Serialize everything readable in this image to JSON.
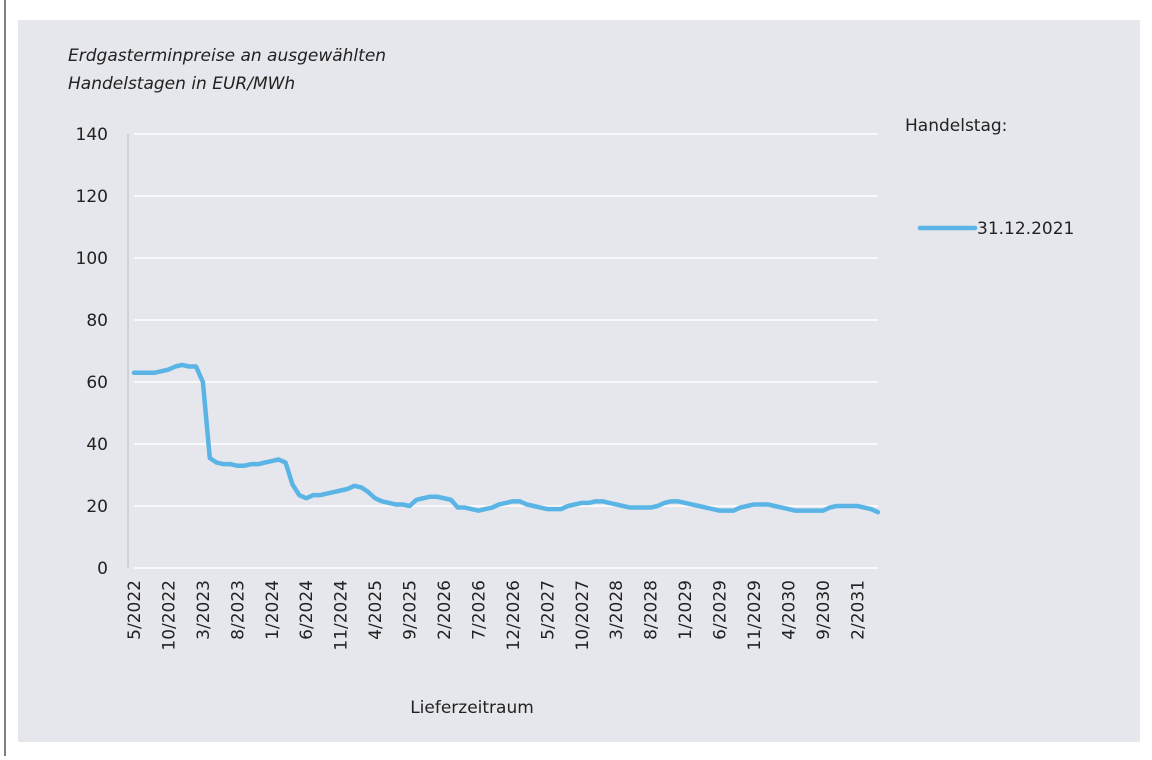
{
  "chart_data": {
    "type": "line",
    "title": [
      "Erdgasterminpreise an ausgewählten",
      "Handelstagen in EUR/MWh"
    ],
    "x_label": "Lieferzeitraum",
    "legend_title": "Handelstag:",
    "categories": [
      "5/2022",
      null,
      null,
      null,
      null,
      "10/2022",
      null,
      null,
      null,
      null,
      "3/2023",
      null,
      null,
      null,
      null,
      "8/2023",
      null,
      null,
      null,
      null,
      "1/2024",
      null,
      null,
      null,
      null,
      "6/2024",
      null,
      null,
      null,
      null,
      "11/2024",
      null,
      null,
      null,
      null,
      "4/2025",
      null,
      null,
      null,
      null,
      "9/2025",
      null,
      null,
      null,
      null,
      "2/2026",
      null,
      null,
      null,
      null,
      "7/2026",
      null,
      null,
      null,
      null,
      "12/2026",
      null,
      null,
      null,
      null,
      "5/2027",
      null,
      null,
      null,
      null,
      "10/2027",
      null,
      null,
      null,
      null,
      "3/2028",
      null,
      null,
      null,
      null,
      "8/2028",
      null,
      null,
      null,
      null,
      "1/2029",
      null,
      null,
      null,
      null,
      "6/2029",
      null,
      null,
      null,
      null,
      "11/2029",
      null,
      null,
      null,
      null,
      "4/2030",
      null,
      null,
      null,
      null,
      "9/2030",
      null,
      null,
      null,
      null,
      "2/2031",
      null,
      null,
      null
    ],
    "series": [
      {
        "name": "31.12.2021",
        "color": "#5ab4e5",
        "values": [
          63,
          63,
          63,
          63,
          63.5,
          64,
          65,
          65.5,
          65,
          65,
          60,
          35.5,
          34,
          33.5,
          33.5,
          33,
          33,
          33.5,
          33.5,
          34,
          34.5,
          35,
          34,
          27,
          23.5,
          22.5,
          23.5,
          23.5,
          24,
          24.5,
          25,
          25.5,
          26.5,
          26,
          24.5,
          22.5,
          21.5,
          21,
          20.5,
          20.5,
          20,
          22,
          22.5,
          23,
          23,
          22.5,
          22,
          19.5,
          19.5,
          19,
          18.5,
          19,
          19.5,
          20.5,
          21,
          21.5,
          21.5,
          20.5,
          20,
          19.5,
          19,
          19,
          19,
          20,
          20.5,
          21,
          21,
          21.5,
          21.5,
          21,
          20.5,
          20,
          19.5,
          19.5,
          19.5,
          19.5,
          20,
          21,
          21.5,
          21.5,
          21,
          20.5,
          20,
          19.5,
          19,
          18.5,
          18.5,
          18.5,
          19.5,
          20,
          20.5,
          20.5,
          20.5,
          20,
          19.5,
          19,
          18.5,
          18.5,
          18.5,
          18.5,
          18.5,
          19.5,
          20,
          20,
          20,
          20,
          19.5,
          19,
          18
        ]
      }
    ],
    "ylim": [
      0,
      140
    ],
    "yticks": [
      0,
      20,
      40,
      60,
      80,
      100,
      120,
      140
    ],
    "grid": true
  }
}
